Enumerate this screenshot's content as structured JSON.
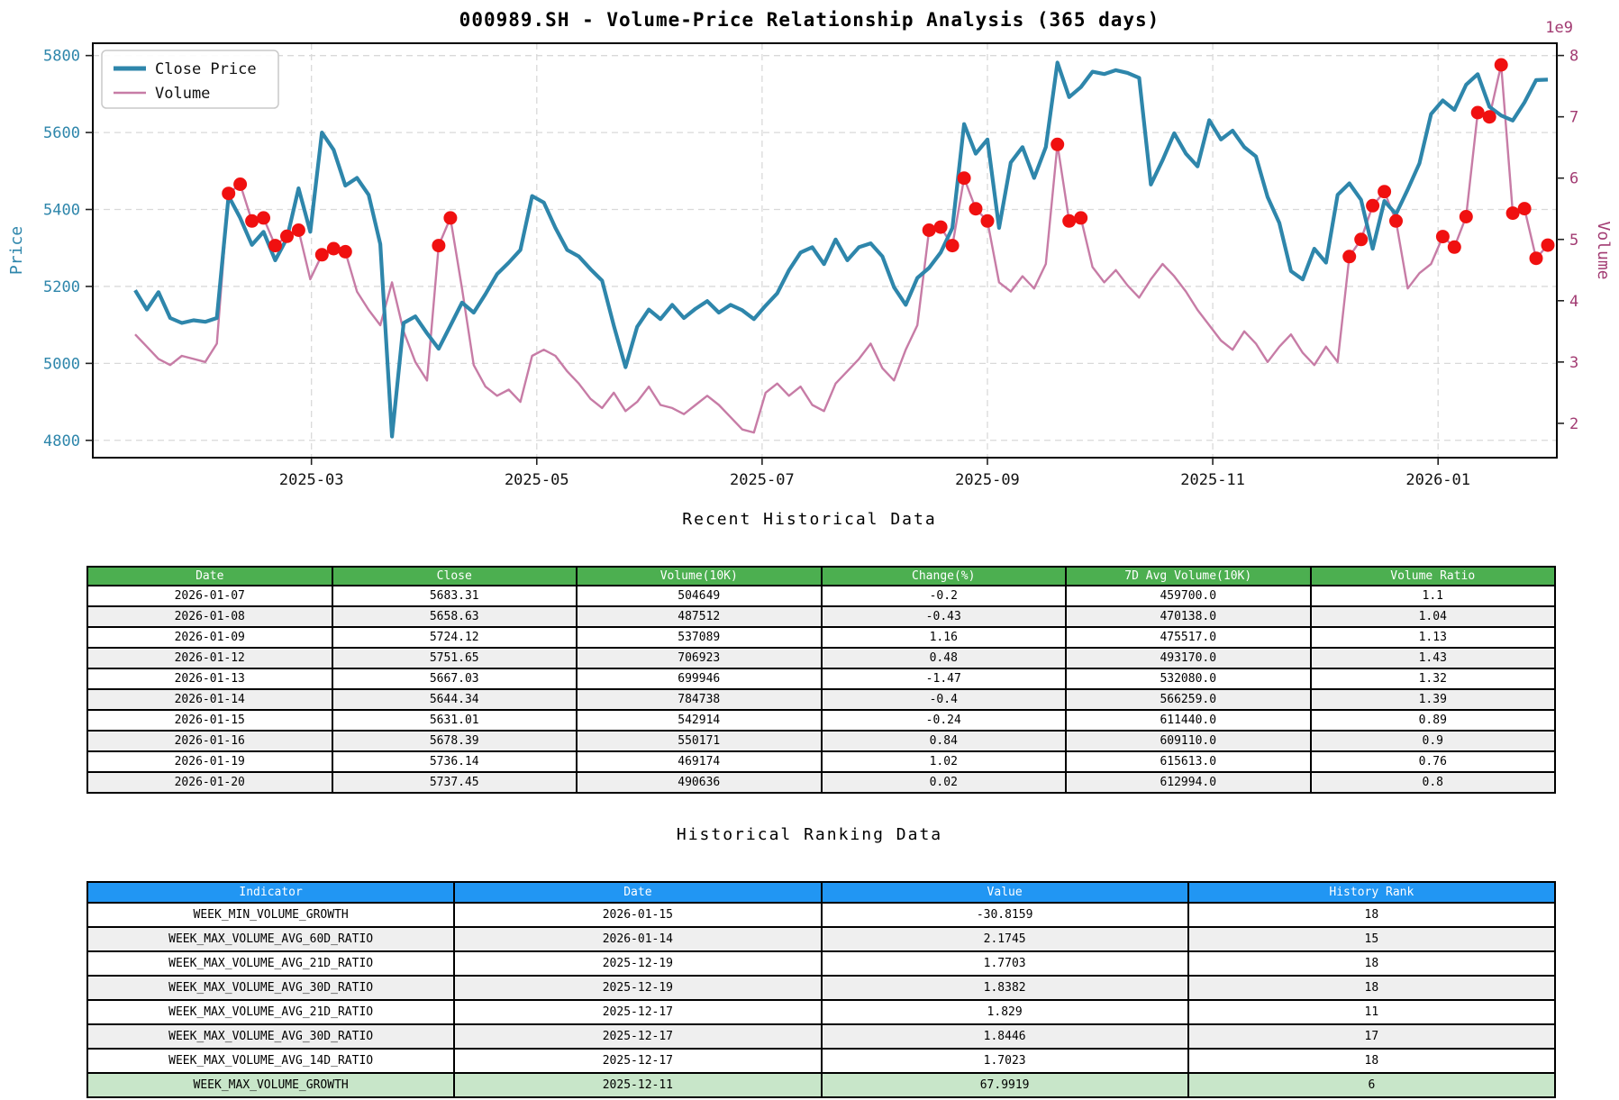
{
  "title": "000989.SH - Volume-Price Relationship Analysis (365 days)",
  "colors": {
    "close_line": "#2e86ab",
    "volume_line": "#c77ca6",
    "price_axis_text": "#2e86ab",
    "volume_axis_text": "#a23b72",
    "marker_red": "#f01010",
    "grid": "#d9d9d9",
    "spine": "#000000",
    "table1_header_bg": "#4caf50",
    "table2_header_bg": "#2196f3",
    "row_alt_bg": "#efefef",
    "highlight_row_bg": "#c8e6c9"
  },
  "chart_data": {
    "type": "line",
    "title": "000989.SH - Volume-Price Relationship Analysis (365 days)",
    "legend": [
      {
        "label": "Close Price",
        "color": "#2e86ab",
        "width": 5
      },
      {
        "label": "Volume",
        "color": "#c77ca6",
        "width": 2.5
      }
    ],
    "left_axis": {
      "label": "Price",
      "ticks": [
        5800,
        5600,
        5400,
        5200,
        5000,
        4800
      ],
      "range": [
        4755,
        5832
      ]
    },
    "right_axis": {
      "label": "Volume",
      "exp_label": "1e9",
      "ticks": [
        8,
        7,
        6,
        5,
        4,
        3,
        2
      ],
      "range": [
        1.44,
        8.2
      ]
    },
    "x_ticks": [
      {
        "label": "2025-03",
        "index": 15.1
      },
      {
        "label": "2025-05",
        "index": 34.4
      },
      {
        "label": "2025-07",
        "index": 53.7
      },
      {
        "label": "2025-09",
        "index": 73.0
      },
      {
        "label": "2025-11",
        "index": 92.3
      },
      {
        "label": "2026-01",
        "index": 111.6
      }
    ],
    "series": [
      {
        "name": "Close Price",
        "axis": "left",
        "values": [
          5190,
          5140,
          5185,
          5118,
          5105,
          5112,
          5108,
          5118,
          5435,
          5378,
          5308,
          5342,
          5268,
          5325,
          5455,
          5342,
          5600,
          5555,
          5462,
          5482,
          5438,
          5310,
          4810,
          5105,
          5122,
          5078,
          5038,
          5098,
          5158,
          5132,
          5180,
          5232,
          5262,
          5295,
          5435,
          5418,
          5352,
          5295,
          5278,
          5245,
          5215,
          5098,
          4990,
          5095,
          5140,
          5115,
          5152,
          5118,
          5142,
          5162,
          5132,
          5152,
          5138,
          5115,
          5150,
          5182,
          5242,
          5288,
          5302,
          5258,
          5322,
          5268,
          5302,
          5312,
          5278,
          5198,
          5152,
          5222,
          5248,
          5288,
          5352,
          5622,
          5545,
          5582,
          5352,
          5522,
          5562,
          5482,
          5562,
          5782,
          5692,
          5718,
          5758,
          5752,
          5762,
          5755,
          5742,
          5465,
          5528,
          5598,
          5545,
          5512,
          5632,
          5582,
          5605,
          5562,
          5538,
          5432,
          5365,
          5240,
          5218,
          5298,
          5262,
          5438,
          5468,
          5425,
          5298,
          5422,
          5388,
          5452,
          5520,
          5648,
          5683.31,
          5658.63,
          5724.12,
          5751.65,
          5667.03,
          5644.34,
          5631.01,
          5678.39,
          5736.14,
          5737.45
        ]
      },
      {
        "name": "Volume",
        "axis": "right",
        "unit": "1e9",
        "values": [
          3.45,
          3.25,
          3.05,
          2.95,
          3.1,
          3.05,
          3.0,
          3.3,
          5.75,
          5.9,
          5.3,
          5.35,
          4.9,
          5.05,
          5.15,
          4.35,
          4.75,
          4.85,
          4.8,
          4.15,
          3.85,
          3.6,
          4.3,
          3.5,
          3.0,
          2.7,
          4.9,
          5.35,
          4.2,
          2.95,
          2.6,
          2.45,
          2.55,
          2.35,
          3.1,
          3.2,
          3.1,
          2.85,
          2.65,
          2.4,
          2.25,
          2.5,
          2.2,
          2.35,
          2.6,
          2.3,
          2.25,
          2.15,
          2.3,
          2.45,
          2.3,
          2.1,
          1.9,
          1.85,
          2.5,
          2.65,
          2.45,
          2.6,
          2.3,
          2.2,
          2.65,
          2.85,
          3.05,
          3.3,
          2.9,
          2.7,
          3.2,
          3.6,
          5.15,
          5.2,
          4.9,
          6.0,
          5.5,
          5.3,
          4.3,
          4.15,
          4.4,
          4.2,
          4.6,
          6.55,
          5.3,
          5.35,
          4.55,
          4.3,
          4.5,
          4.25,
          4.05,
          4.35,
          4.6,
          4.4,
          4.15,
          3.85,
          3.6,
          3.35,
          3.2,
          3.5,
          3.3,
          3.0,
          3.25,
          3.45,
          3.15,
          2.95,
          3.25,
          3.0,
          4.72,
          5.0,
          5.55,
          5.78,
          5.3,
          4.2,
          4.45,
          4.6,
          5.046,
          4.875,
          5.371,
          7.069,
          6.999,
          7.847,
          5.429,
          5.502,
          4.692,
          4.906
        ]
      }
    ],
    "volume_spike_marker_indices": [
      8,
      9,
      10,
      11,
      12,
      13,
      14,
      16,
      17,
      18,
      26,
      27,
      68,
      69,
      70,
      71,
      72,
      73,
      79,
      80,
      81,
      104,
      105,
      106,
      107,
      108,
      112,
      113,
      114,
      115,
      116,
      117,
      118,
      119,
      120,
      121
    ]
  },
  "section1": {
    "heading": "Recent Historical Data",
    "table": {
      "headers": [
        "Date",
        "Close",
        "Volume(10K)",
        "Change(%)",
        "7D Avg Volume(10K)",
        "Volume Ratio"
      ],
      "rows": [
        [
          "2026-01-07",
          "5683.31",
          "504649",
          "-0.2",
          "459700.0",
          "1.1"
        ],
        [
          "2026-01-08",
          "5658.63",
          "487512",
          "-0.43",
          "470138.0",
          "1.04"
        ],
        [
          "2026-01-09",
          "5724.12",
          "537089",
          "1.16",
          "475517.0",
          "1.13"
        ],
        [
          "2026-01-12",
          "5751.65",
          "706923",
          "0.48",
          "493170.0",
          "1.43"
        ],
        [
          "2026-01-13",
          "5667.03",
          "699946",
          "-1.47",
          "532080.0",
          "1.32"
        ],
        [
          "2026-01-14",
          "5644.34",
          "784738",
          "-0.4",
          "566259.0",
          "1.39"
        ],
        [
          "2026-01-15",
          "5631.01",
          "542914",
          "-0.24",
          "611440.0",
          "0.89"
        ],
        [
          "2026-01-16",
          "5678.39",
          "550171",
          "0.84",
          "609110.0",
          "0.9"
        ],
        [
          "2026-01-19",
          "5736.14",
          "469174",
          "1.02",
          "615613.0",
          "0.76"
        ],
        [
          "2026-01-20",
          "5737.45",
          "490636",
          "0.02",
          "612994.0",
          "0.8"
        ]
      ]
    }
  },
  "section2": {
    "heading": "Historical Ranking Data",
    "table": {
      "headers": [
        "Indicator",
        "Date",
        "Value",
        "History Rank"
      ],
      "rows": [
        [
          "WEEK_MIN_VOLUME_GROWTH",
          "2026-01-15",
          "-30.8159",
          "18"
        ],
        [
          "WEEK_MAX_VOLUME_AVG_60D_RATIO",
          "2026-01-14",
          "2.1745",
          "15"
        ],
        [
          "WEEK_MAX_VOLUME_AVG_21D_RATIO",
          "2025-12-19",
          "1.7703",
          "18"
        ],
        [
          "WEEK_MAX_VOLUME_AVG_30D_RATIO",
          "2025-12-19",
          "1.8382",
          "18"
        ],
        [
          "WEEK_MAX_VOLUME_AVG_21D_RATIO",
          "2025-12-17",
          "1.829",
          "11"
        ],
        [
          "WEEK_MAX_VOLUME_AVG_30D_RATIO",
          "2025-12-17",
          "1.8446",
          "17"
        ],
        [
          "WEEK_MAX_VOLUME_AVG_14D_RATIO",
          "2025-12-17",
          "1.7023",
          "18"
        ],
        [
          "WEEK_MAX_VOLUME_GROWTH",
          "2025-12-11",
          "67.9919",
          "6"
        ]
      ],
      "highlight_last_row": true
    }
  }
}
